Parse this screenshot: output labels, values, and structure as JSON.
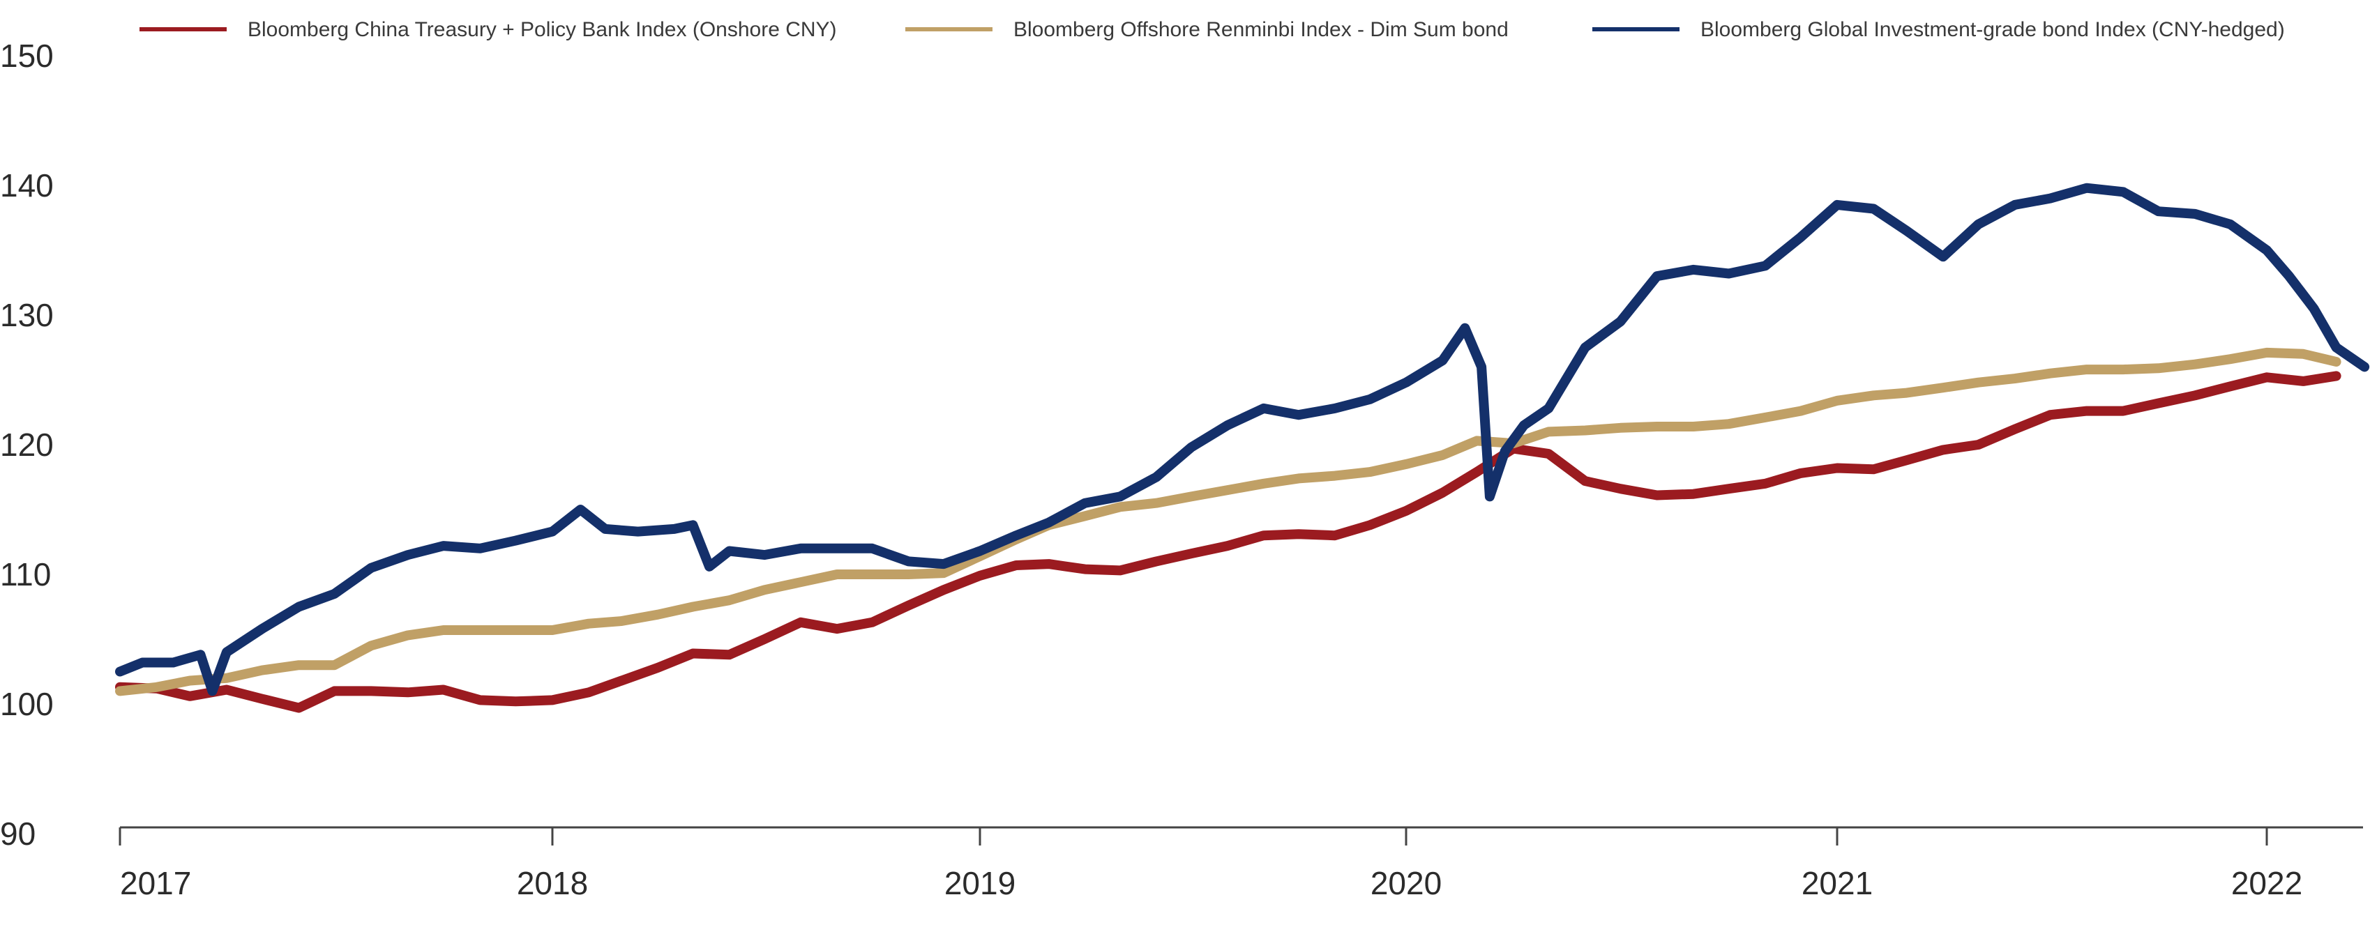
{
  "chart_data": {
    "type": "line",
    "title": "",
    "xlabel": "",
    "ylabel": "",
    "ylim": [
      90,
      150
    ],
    "y_ticks": [
      "90",
      "100",
      "110",
      "120",
      "130",
      "140",
      "150"
    ],
    "x_ticks": [
      "2017",
      "2018",
      "2019",
      "2020",
      "2021",
      "2022"
    ],
    "x_range": [
      "2017-01",
      "2022-03"
    ],
    "grid": false,
    "legend_position": "top",
    "series": [
      {
        "name": "Bloomberg China Treasury + Policy Bank Index (Onshore CNY)",
        "color": "#9b1b20",
        "points": [
          [
            "2017-01-01",
            101.3
          ],
          [
            "2017-02-01",
            101.2
          ],
          [
            "2017-03-01",
            100.6
          ],
          [
            "2017-04-01",
            101.1
          ],
          [
            "2017-05-01",
            100.4
          ],
          [
            "2017-06-01",
            99.7
          ],
          [
            "2017-07-01",
            101.0
          ],
          [
            "2017-08-01",
            101.0
          ],
          [
            "2017-09-01",
            100.9
          ],
          [
            "2017-10-01",
            101.1
          ],
          [
            "2017-11-01",
            100.3
          ],
          [
            "2017-12-01",
            100.2
          ],
          [
            "2018-01-01",
            100.3
          ],
          [
            "2018-02-01",
            100.9
          ],
          [
            "2018-03-01",
            101.8
          ],
          [
            "2018-04-01",
            102.8
          ],
          [
            "2018-05-01",
            103.9
          ],
          [
            "2018-06-01",
            103.8
          ],
          [
            "2018-07-01",
            105.0
          ],
          [
            "2018-08-01",
            106.3
          ],
          [
            "2018-09-01",
            105.8
          ],
          [
            "2018-10-01",
            106.3
          ],
          [
            "2018-11-01",
            107.6
          ],
          [
            "2018-12-01",
            108.8
          ],
          [
            "2019-01-01",
            109.9
          ],
          [
            "2019-02-01",
            110.7
          ],
          [
            "2019-03-01",
            110.8
          ],
          [
            "2019-04-01",
            110.4
          ],
          [
            "2019-05-01",
            110.3
          ],
          [
            "2019-06-01",
            111.0
          ],
          [
            "2019-07-01",
            111.6
          ],
          [
            "2019-08-01",
            112.2
          ],
          [
            "2019-09-01",
            113.0
          ],
          [
            "2019-10-01",
            113.1
          ],
          [
            "2019-11-01",
            113.0
          ],
          [
            "2019-12-01",
            113.8
          ],
          [
            "2020-01-01",
            114.9
          ],
          [
            "2020-02-01",
            116.3
          ],
          [
            "2020-03-01",
            117.9
          ],
          [
            "2020-04-01",
            119.7
          ],
          [
            "2020-05-01",
            119.3
          ],
          [
            "2020-06-01",
            117.2
          ],
          [
            "2020-07-01",
            116.6
          ],
          [
            "2020-08-01",
            116.1
          ],
          [
            "2020-09-01",
            116.2
          ],
          [
            "2020-10-01",
            116.6
          ],
          [
            "2020-11-01",
            117.0
          ],
          [
            "2020-12-01",
            117.8
          ],
          [
            "2021-01-01",
            118.2
          ],
          [
            "2021-02-01",
            118.1
          ],
          [
            "2021-03-01",
            118.8
          ],
          [
            "2021-04-01",
            119.6
          ],
          [
            "2021-05-01",
            120.0
          ],
          [
            "2021-06-01",
            121.2
          ],
          [
            "2021-07-01",
            122.3
          ],
          [
            "2021-08-01",
            122.6
          ],
          [
            "2021-09-01",
            122.6
          ],
          [
            "2021-10-01",
            123.2
          ],
          [
            "2021-11-01",
            123.8
          ],
          [
            "2021-12-01",
            124.5
          ],
          [
            "2022-01-01",
            125.2
          ],
          [
            "2022-02-01",
            124.9
          ],
          [
            "2022-03-01",
            125.3
          ]
        ]
      },
      {
        "name": "Bloomberg Offshore Renminbi Index - Dim Sum bond",
        "color": "#c0a066",
        "points": [
          [
            "2017-01-01",
            101.0
          ],
          [
            "2017-02-01",
            101.3
          ],
          [
            "2017-03-01",
            101.8
          ],
          [
            "2017-04-01",
            102.0
          ],
          [
            "2017-05-01",
            102.6
          ],
          [
            "2017-06-01",
            103.0
          ],
          [
            "2017-07-01",
            103.0
          ],
          [
            "2017-08-01",
            104.5
          ],
          [
            "2017-09-01",
            105.3
          ],
          [
            "2017-10-01",
            105.7
          ],
          [
            "2017-11-01",
            105.7
          ],
          [
            "2017-12-01",
            105.7
          ],
          [
            "2018-01-01",
            105.7
          ],
          [
            "2018-02-01",
            106.2
          ],
          [
            "2018-03-01",
            106.4
          ],
          [
            "2018-04-01",
            106.9
          ],
          [
            "2018-05-01",
            107.5
          ],
          [
            "2018-06-01",
            108.0
          ],
          [
            "2018-07-01",
            108.8
          ],
          [
            "2018-08-01",
            109.4
          ],
          [
            "2018-09-01",
            110.0
          ],
          [
            "2018-10-01",
            110.0
          ],
          [
            "2018-11-01",
            110.0
          ],
          [
            "2018-12-01",
            110.1
          ],
          [
            "2019-01-01",
            111.4
          ],
          [
            "2019-02-01",
            112.7
          ],
          [
            "2019-03-01",
            113.8
          ],
          [
            "2019-04-01",
            114.5
          ],
          [
            "2019-05-01",
            115.2
          ],
          [
            "2019-06-01",
            115.5
          ],
          [
            "2019-07-01",
            116.0
          ],
          [
            "2019-08-01",
            116.5
          ],
          [
            "2019-09-01",
            117.0
          ],
          [
            "2019-10-01",
            117.4
          ],
          [
            "2019-11-01",
            117.6
          ],
          [
            "2019-12-01",
            117.9
          ],
          [
            "2020-01-01",
            118.5
          ],
          [
            "2020-02-01",
            119.2
          ],
          [
            "2020-03-01",
            120.3
          ],
          [
            "2020-04-01",
            120.1
          ],
          [
            "2020-05-01",
            121.0
          ],
          [
            "2020-06-01",
            121.1
          ],
          [
            "2020-07-01",
            121.3
          ],
          [
            "2020-08-01",
            121.4
          ],
          [
            "2020-09-01",
            121.4
          ],
          [
            "2020-10-01",
            121.6
          ],
          [
            "2020-11-01",
            122.1
          ],
          [
            "2020-12-01",
            122.6
          ],
          [
            "2021-01-01",
            123.4
          ],
          [
            "2021-02-01",
            123.8
          ],
          [
            "2021-03-01",
            124.0
          ],
          [
            "2021-04-01",
            124.4
          ],
          [
            "2021-05-01",
            124.8
          ],
          [
            "2021-06-01",
            125.1
          ],
          [
            "2021-07-01",
            125.5
          ],
          [
            "2021-08-01",
            125.8
          ],
          [
            "2021-09-01",
            125.8
          ],
          [
            "2021-10-01",
            125.9
          ],
          [
            "2021-11-01",
            126.2
          ],
          [
            "2021-12-01",
            126.6
          ],
          [
            "2022-01-01",
            127.1
          ],
          [
            "2022-02-01",
            127.0
          ],
          [
            "2022-03-01",
            126.4
          ]
        ]
      },
      {
        "name": "Bloomberg Global Investment-grade bond Index (CNY-hedged)",
        "color": "#14306a",
        "points": [
          [
            "2017-01-01",
            102.5
          ],
          [
            "2017-01-20",
            103.2
          ],
          [
            "2017-02-15",
            103.2
          ],
          [
            "2017-03-10",
            103.8
          ],
          [
            "2017-03-20",
            101.0
          ],
          [
            "2017-04-01",
            104.0
          ],
          [
            "2017-05-01",
            105.8
          ],
          [
            "2017-06-01",
            107.5
          ],
          [
            "2017-07-01",
            108.5
          ],
          [
            "2017-08-01",
            110.5
          ],
          [
            "2017-09-01",
            111.5
          ],
          [
            "2017-10-01",
            112.2
          ],
          [
            "2017-11-01",
            112.0
          ],
          [
            "2017-12-01",
            112.6
          ],
          [
            "2018-01-01",
            113.3
          ],
          [
            "2018-01-25",
            115.0
          ],
          [
            "2018-02-15",
            113.5
          ],
          [
            "2018-03-15",
            113.3
          ],
          [
            "2018-04-15",
            113.5
          ],
          [
            "2018-05-01",
            113.8
          ],
          [
            "2018-05-15",
            110.6
          ],
          [
            "2018-06-01",
            111.8
          ],
          [
            "2018-07-01",
            111.5
          ],
          [
            "2018-08-01",
            112.0
          ],
          [
            "2018-09-01",
            112.0
          ],
          [
            "2018-10-01",
            112.0
          ],
          [
            "2018-11-01",
            111.0
          ],
          [
            "2018-12-01",
            110.8
          ],
          [
            "2019-01-01",
            111.8
          ],
          [
            "2019-02-01",
            113.0
          ],
          [
            "2019-03-01",
            114.0
          ],
          [
            "2019-04-01",
            115.5
          ],
          [
            "2019-05-01",
            116.0
          ],
          [
            "2019-06-01",
            117.5
          ],
          [
            "2019-07-01",
            119.8
          ],
          [
            "2019-08-01",
            121.5
          ],
          [
            "2019-09-01",
            122.8
          ],
          [
            "2019-10-01",
            122.3
          ],
          [
            "2019-11-01",
            122.8
          ],
          [
            "2019-12-01",
            123.5
          ],
          [
            "2020-01-01",
            124.8
          ],
          [
            "2020-02-01",
            126.5
          ],
          [
            "2020-02-20",
            129.0
          ],
          [
            "2020-03-05",
            126.0
          ],
          [
            "2020-03-12",
            116.0
          ],
          [
            "2020-03-25",
            119.5
          ],
          [
            "2020-04-10",
            121.5
          ],
          [
            "2020-05-01",
            122.8
          ],
          [
            "2020-06-01",
            127.5
          ],
          [
            "2020-07-01",
            129.5
          ],
          [
            "2020-08-01",
            133.0
          ],
          [
            "2020-09-01",
            133.5
          ],
          [
            "2020-10-01",
            133.2
          ],
          [
            "2020-11-01",
            133.8
          ],
          [
            "2020-12-01",
            136.0
          ],
          [
            "2021-01-01",
            138.5
          ],
          [
            "2021-02-01",
            138.2
          ],
          [
            "2021-03-01",
            136.5
          ],
          [
            "2021-04-01",
            134.5
          ],
          [
            "2021-05-01",
            137.0
          ],
          [
            "2021-06-01",
            138.5
          ],
          [
            "2021-07-01",
            139.0
          ],
          [
            "2021-08-01",
            139.8
          ],
          [
            "2021-09-01",
            139.5
          ],
          [
            "2021-10-01",
            138.0
          ],
          [
            "2021-11-01",
            137.8
          ],
          [
            "2021-12-01",
            137.0
          ],
          [
            "2022-01-01",
            135.0
          ],
          [
            "2022-01-20",
            133.0
          ],
          [
            "2022-02-10",
            130.5
          ],
          [
            "2022-03-01",
            127.5
          ],
          [
            "2022-03-25",
            126.0
          ]
        ]
      }
    ]
  }
}
